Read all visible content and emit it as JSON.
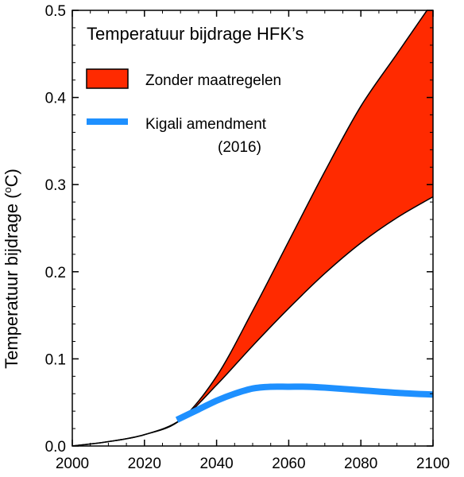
{
  "chart_data": {
    "type": "area",
    "title": "",
    "xlabel": "",
    "ylabel": "Temperatuur bijdrage (",
    "ylabel_unit": "oC",
    "ylabel_unit_sup": "o",
    "ylabel_unit_main": "C",
    "ylabel_close": ")",
    "xlim": [
      2000,
      2100
    ],
    "ylim": [
      0,
      0.5
    ],
    "x_ticks": [
      2000,
      2020,
      2040,
      2060,
      2080,
      2100
    ],
    "x_tick_labels": [
      "2000",
      "2020",
      "2040",
      "2060",
      "2080",
      "2100"
    ],
    "y_ticks": [
      0,
      0.1,
      0.2,
      0.3,
      0.4,
      0.5
    ],
    "y_tick_labels": [
      "0.0",
      "0.1",
      "0.2",
      "0.3",
      "0.4",
      "0.5"
    ],
    "grid": false,
    "legend": {
      "title": "Temperatuur bijdrage HFK’s",
      "placement": "top-left",
      "entries": [
        {
          "label": "Zonder maatregelen",
          "type": "band",
          "color": "#ff2a00"
        },
        {
          "label": "Kigali amendment",
          "sublabel": "(2016)",
          "type": "line",
          "color": "#1e90ff"
        }
      ]
    },
    "series": [
      {
        "name": "Zonder maatregelen",
        "kind": "band",
        "color": "#ff2a00",
        "x": [
          2000,
          2010,
          2020,
          2030,
          2040,
          2050,
          2060,
          2070,
          2080,
          2090,
          2100
        ],
        "lower": [
          0.0,
          0.005,
          0.013,
          0.03,
          0.07,
          0.115,
          0.158,
          0.198,
          0.233,
          0.262,
          0.286
        ],
        "upper": [
          0.0,
          0.005,
          0.013,
          0.03,
          0.08,
          0.155,
          0.235,
          0.315,
          0.39,
          0.45,
          0.51
        ]
      },
      {
        "name": "Kigali amendment",
        "kind": "line",
        "color": "#1e90ff",
        "x": [
          2029,
          2035,
          2040,
          2045,
          2050,
          2055,
          2060,
          2065,
          2070,
          2080,
          2090,
          2100
        ],
        "y": [
          0.03,
          0.042,
          0.052,
          0.06,
          0.066,
          0.068,
          0.068,
          0.068,
          0.067,
          0.064,
          0.061,
          0.059
        ]
      }
    ]
  },
  "colors": {
    "axis": "#000000",
    "band": "#ff2a00",
    "kigali": "#1e90ff"
  }
}
